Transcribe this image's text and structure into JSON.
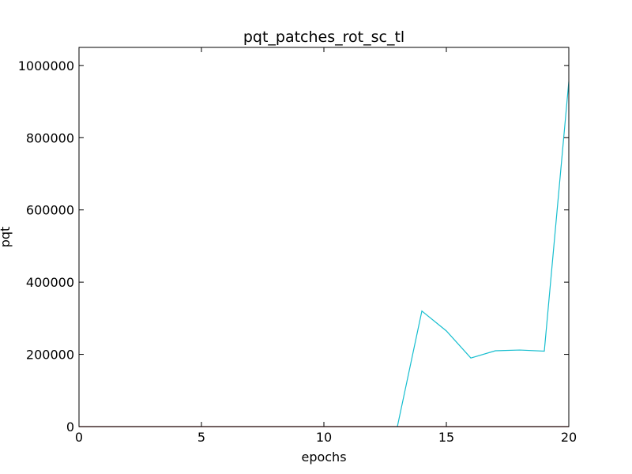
{
  "chart_data": {
    "type": "line",
    "title": "pqt_patches_rot_sc_tl",
    "xlabel": "epochs",
    "ylabel": "pqt",
    "xlim": [
      0,
      20
    ],
    "ylim": [
      0,
      1050000
    ],
    "x_ticks": [
      0,
      5,
      10,
      15,
      20
    ],
    "x_tick_labels": [
      "0",
      "5",
      "10",
      "15",
      "20"
    ],
    "y_ticks": [
      0,
      200000,
      400000,
      600000,
      800000,
      1000000
    ],
    "y_tick_labels": [
      "0",
      "200000",
      "400000",
      "600000",
      "800000",
      "1000000"
    ],
    "grid": false,
    "series": [
      {
        "color": "#17becf",
        "x": [
          13,
          14,
          15,
          16,
          17,
          18,
          19,
          20
        ],
        "y": [
          0,
          320000,
          265000,
          190000,
          210000,
          212000,
          209000,
          955000
        ]
      },
      {
        "color": "#8b0000",
        "x": [
          0,
          20
        ],
        "y": [
          0,
          0
        ]
      }
    ]
  }
}
